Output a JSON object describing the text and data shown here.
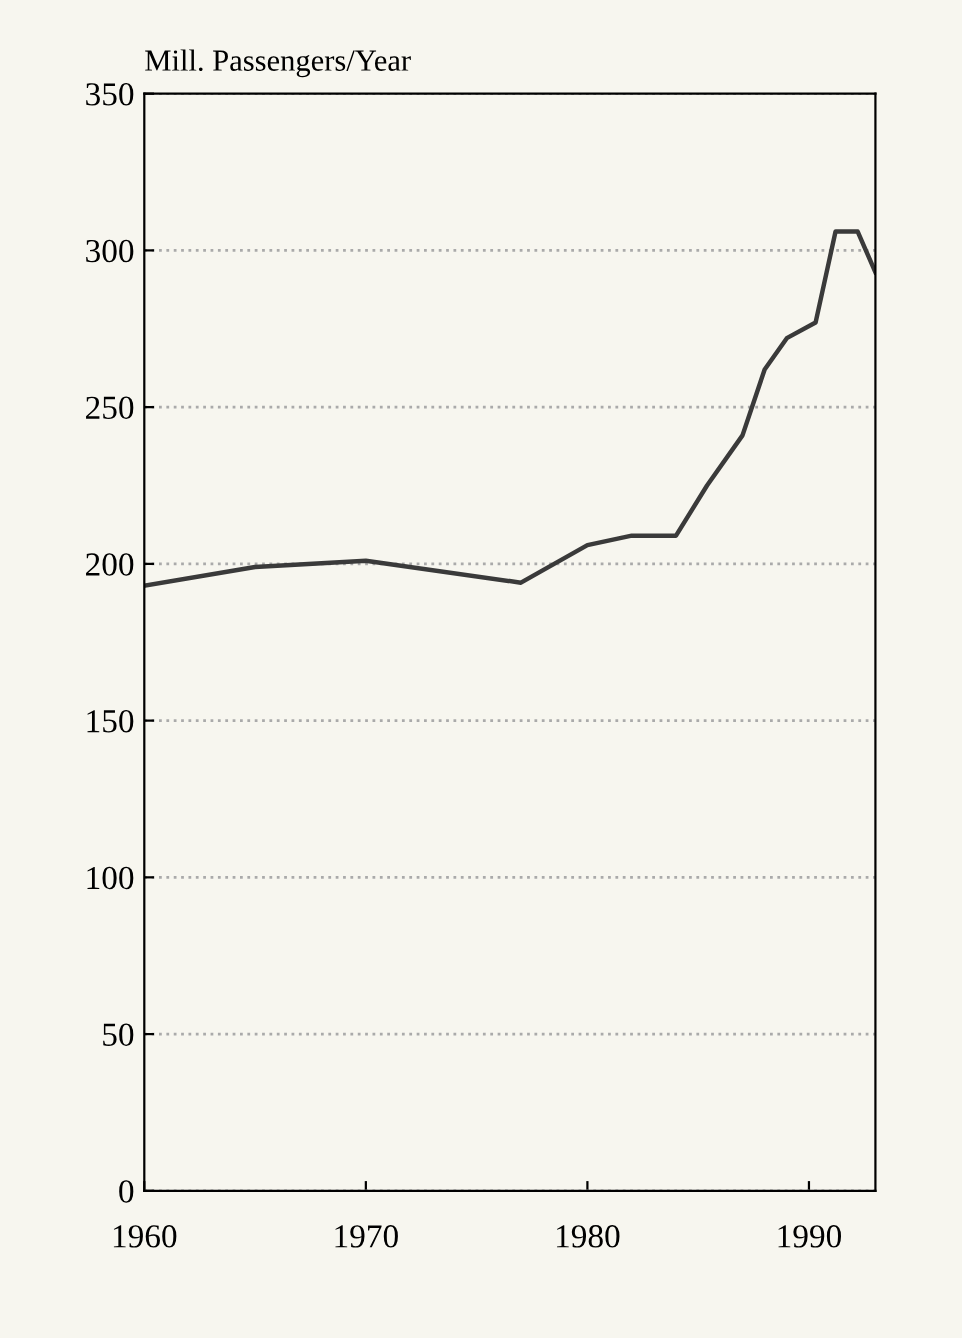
{
  "chart_data": {
    "type": "line",
    "ylabel": "Mill. Passengers/Year",
    "series": [
      {
        "color": "#3a3a3a",
        "x": [
          1960,
          1965,
          1970,
          1977,
          1980,
          1982,
          1984,
          1985.4,
          1987,
          1988,
          1989,
          1990.3,
          1991.2,
          1992.2,
          1993
        ],
        "values": [
          193,
          199,
          201,
          194,
          206,
          209,
          209,
          225,
          241,
          262,
          272,
          277,
          306,
          306,
          293
        ]
      }
    ],
    "xlim": [
      1960,
      1993
    ],
    "xticks": [
      1960,
      1970,
      1980,
      1990
    ],
    "ylim": [
      0,
      350
    ],
    "yticks": [
      0,
      50,
      100,
      150,
      200,
      250,
      300,
      350
    ],
    "grid": "y",
    "marker": "none",
    "line_style": "solid",
    "legend": false
  }
}
